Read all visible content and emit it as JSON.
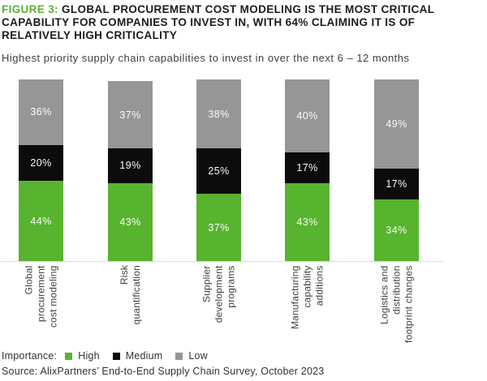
{
  "header": {
    "figure_label": "FIGURE 3:",
    "title_line1": "GLOBAL PROCUREMENT COST MODELING IS THE MOST CRITICAL",
    "title_line2": "CAPABILITY FOR COMPANIES TO INVEST IN, WITH 64% CLAIMING IT IS OF",
    "title_line3": "RELATIVELY HIGH CRITICALITY",
    "subtitle": "Highest priority supply chain capabilities to invest in over the next 6 – 12 months"
  },
  "chart_data": {
    "type": "bar",
    "stacked": true,
    "orientation": "vertical",
    "title": "Highest priority supply chain capabilities to invest in over the next 6 – 12 months",
    "categories": [
      "Global procurement cost modeling",
      "Risk quantification",
      "Supplier development programs",
      "Manufacturing capability additions",
      "Logistics and distribution footprint changes"
    ],
    "category_label_lines": [
      [
        "Global",
        "procurement",
        "cost modeling"
      ],
      [
        "Risk",
        "quantification"
      ],
      [
        "Supplier",
        "development",
        "programs"
      ],
      [
        "Manufacturing",
        "capability",
        "additions"
      ],
      [
        "Logistics and",
        "distribution",
        "footprint changes"
      ]
    ],
    "series": [
      {
        "name": "High",
        "color": "#58b32f",
        "values": [
          44,
          43,
          37,
          43,
          34
        ]
      },
      {
        "name": "Medium",
        "color": "#0c0c0c",
        "values": [
          20,
          19,
          25,
          17,
          17
        ]
      },
      {
        "name": "Low",
        "color": "#969696",
        "values": [
          36,
          37,
          38,
          40,
          49
        ]
      }
    ],
    "value_suffix": "%",
    "ylim": [
      0,
      100
    ],
    "grid": false,
    "legend_position": "bottom"
  },
  "legend": {
    "title": "Importance:",
    "items": [
      {
        "label": "High",
        "color": "#58b32f"
      },
      {
        "label": "Medium",
        "color": "#0c0c0c"
      },
      {
        "label": "Low",
        "color": "#969696"
      }
    ]
  },
  "source": "Source: AlixPartners’ End-to-End Supply Chain Survey, October 2023",
  "colors": {
    "accent_green": "#58b32f",
    "segment_black": "#0c0c0c",
    "segment_gray": "#969696",
    "axis_line": "#d8d8d8",
    "title_text": "#1c1c1c",
    "body_text": "#3f3f3f"
  }
}
